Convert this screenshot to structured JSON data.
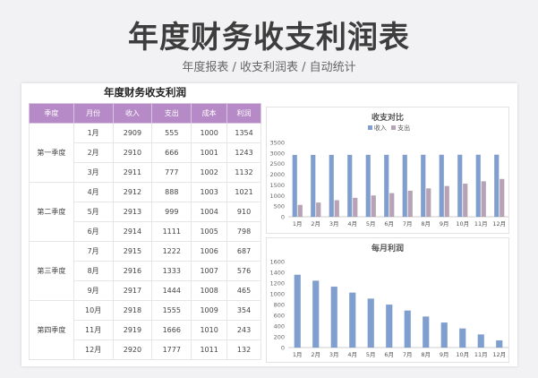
{
  "header": {
    "title": "年度财务收支利润表",
    "subtitle": "年度报表 / 收支利润表 / 自动统计"
  },
  "table": {
    "title": "年度财务收支利润",
    "columns": [
      "季度",
      "月份",
      "收入",
      "支出",
      "成本",
      "利润"
    ],
    "quarters": [
      {
        "label": "第一季度",
        "rows": [
          [
            "1月",
            "2909",
            "555",
            "1000",
            "1354"
          ],
          [
            "2月",
            "2910",
            "666",
            "1001",
            "1243"
          ],
          [
            "3月",
            "2911",
            "777",
            "1002",
            "1132"
          ]
        ]
      },
      {
        "label": "第二季度",
        "rows": [
          [
            "4月",
            "2912",
            "888",
            "1003",
            "1021"
          ],
          [
            "5月",
            "2913",
            "999",
            "1004",
            "910"
          ],
          [
            "6月",
            "2914",
            "1111",
            "1005",
            "798"
          ]
        ]
      },
      {
        "label": "第三季度",
        "rows": [
          [
            "7月",
            "2915",
            "1222",
            "1006",
            "687"
          ],
          [
            "8月",
            "2916",
            "1333",
            "1007",
            "576"
          ],
          [
            "9月",
            "2917",
            "1444",
            "1008",
            "465"
          ]
        ]
      },
      {
        "label": "第四季度",
        "rows": [
          [
            "10月",
            "2918",
            "1555",
            "1009",
            "354"
          ],
          [
            "11月",
            "2919",
            "1666",
            "1010",
            "243"
          ],
          [
            "12月",
            "2920",
            "1777",
            "1011",
            "132"
          ]
        ]
      }
    ]
  },
  "colors": {
    "header_purple": "#b68ac6",
    "income_blue": "#7f9fd0",
    "expense_mauve": "#b7a2b6",
    "profit_blue": "#7f9fd0"
  },
  "chart_data": [
    {
      "type": "bar",
      "title": "收支对比",
      "categories": [
        "1月",
        "2月",
        "3月",
        "4月",
        "5月",
        "6月",
        "7月",
        "8月",
        "9月",
        "10月",
        "11月",
        "12月"
      ],
      "series": [
        {
          "name": "收入",
          "values": [
            2909,
            2910,
            2911,
            2912,
            2913,
            2914,
            2915,
            2916,
            2917,
            2918,
            2919,
            2920
          ]
        },
        {
          "name": "支出",
          "values": [
            555,
            666,
            777,
            888,
            999,
            1111,
            1222,
            1333,
            1444,
            1555,
            1666,
            1777
          ]
        }
      ],
      "yticks": [
        0,
        500,
        1000,
        1500,
        2000,
        2500,
        3000,
        3500
      ],
      "ylim": [
        0,
        3500
      ],
      "legend_position": "top",
      "xlabel": "",
      "ylabel": ""
    },
    {
      "type": "bar",
      "title": "每月利润",
      "categories": [
        "1月",
        "2月",
        "3月",
        "4月",
        "5月",
        "6月",
        "7月",
        "8月",
        "9月",
        "10月",
        "11月",
        "12月"
      ],
      "values": [
        1354,
        1243,
        1132,
        1021,
        910,
        798,
        687,
        576,
        465,
        354,
        243,
        132
      ],
      "yticks": [
        0,
        200,
        400,
        600,
        800,
        1000,
        1200,
        1400,
        1600
      ],
      "ylim": [
        0,
        1600
      ],
      "xlabel": "",
      "ylabel": ""
    }
  ]
}
